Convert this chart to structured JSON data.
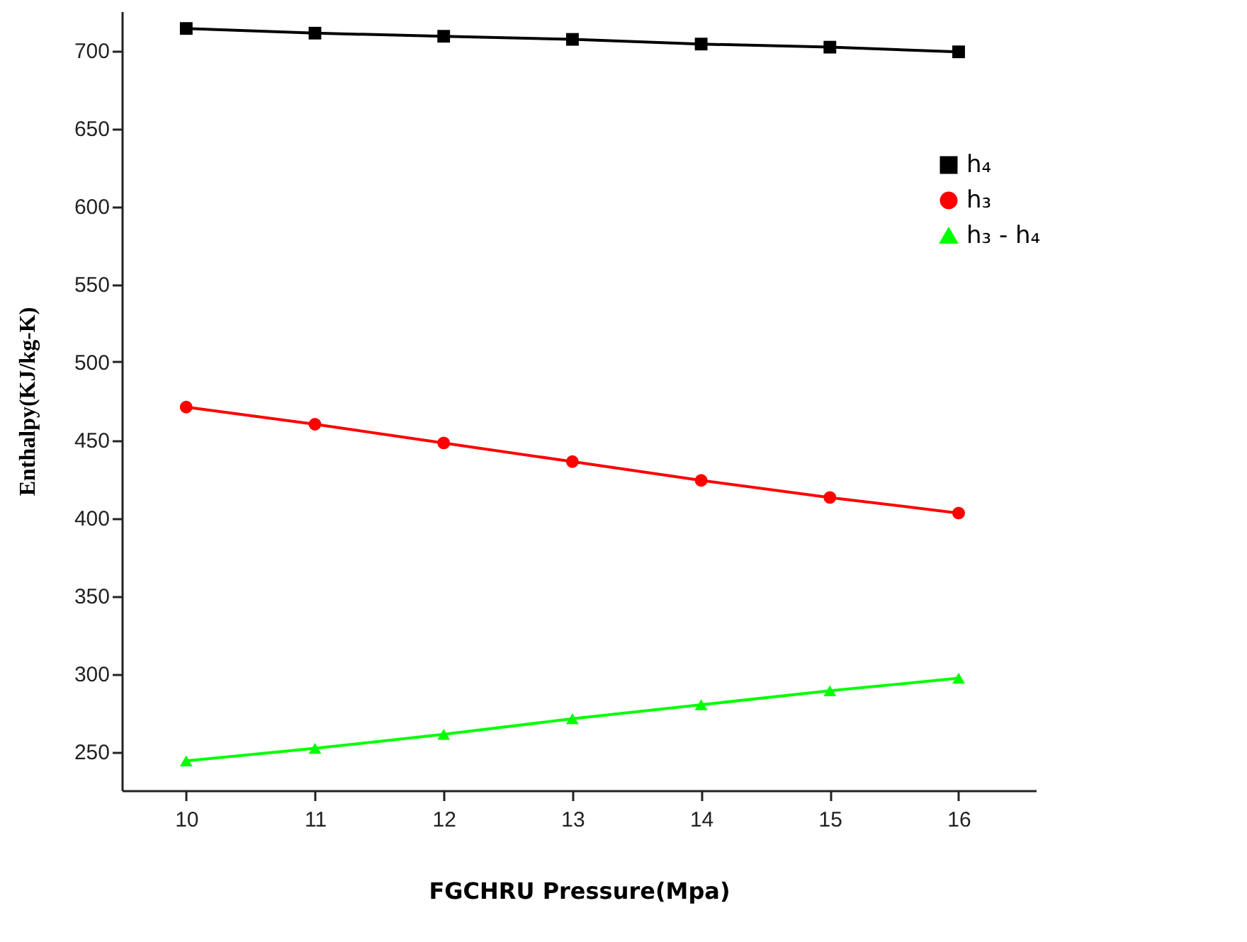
{
  "chart_data": {
    "type": "line",
    "xlabel": "FGCHRU Pressure(Mpa)",
    "ylabel": "Enthalpy(KJ/kg-K)",
    "x": [
      10,
      11,
      12,
      13,
      14,
      15,
      16
    ],
    "xlim": [
      9.5,
      16.6
    ],
    "xticks": [
      10,
      11,
      12,
      13,
      14,
      15,
      16
    ],
    "ylim": [
      225,
      725
    ],
    "yticks": [
      250,
      300,
      350,
      400,
      450,
      500,
      550,
      600,
      650,
      700
    ],
    "grid": false,
    "legend": "right",
    "line_style": "solid",
    "series": [
      {
        "name": "h₄",
        "color": "#000000",
        "marker": "square",
        "values": [
          714,
          711,
          709,
          707,
          704,
          702,
          699
        ]
      },
      {
        "name": "h₃",
        "color": "#ff0000",
        "marker": "circle",
        "values": [
          471,
          460,
          448,
          436,
          424,
          413,
          403
        ]
      },
      {
        "name": "h₃ -  h₄",
        "color": "#00ff00",
        "marker": "triangle",
        "values": [
          244,
          252,
          261,
          271,
          280,
          289,
          297
        ]
      }
    ]
  }
}
